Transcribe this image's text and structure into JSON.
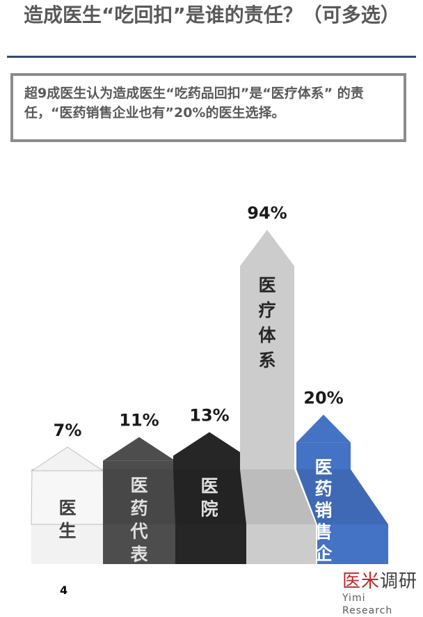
{
  "title": "造成医生“吃回扣”是谁的责任？（可多选）",
  "summary": "超9成医生认为造成医生“吃药品回扣”是“医疗体系” 的责任，“医药销售企业也有”20%的医生选择。",
  "page_number": "4",
  "logo": {
    "cn_part1": "医米",
    "cn_part2": "调研",
    "en": "Yimi Research"
  },
  "chart_data": {
    "type": "bar",
    "categories": [
      "医生",
      "医药代表",
      "医院",
      "医疗体系",
      "医药销售企业"
    ],
    "values": [
      7,
      11,
      13,
      94,
      20
    ],
    "value_labels": [
      "7%",
      "11%",
      "13%",
      "94%",
      "20%"
    ],
    "unit": "%",
    "ylim": [
      0,
      100
    ],
    "grid": false,
    "legend": "none",
    "colors": {
      "医生": "#f2f2f2",
      "医药代表": "#4d4d4d",
      "医院": "#262626",
      "医疗体系": "#cccccc",
      "医药销售企业": "#4472c4"
    },
    "label_colors": {
      "医生": "#404040",
      "医药代表": "#e0e0e0",
      "医院": "#e0e0e0",
      "医疗体系": "#262626",
      "医药销售企业": "#ffffff"
    }
  }
}
